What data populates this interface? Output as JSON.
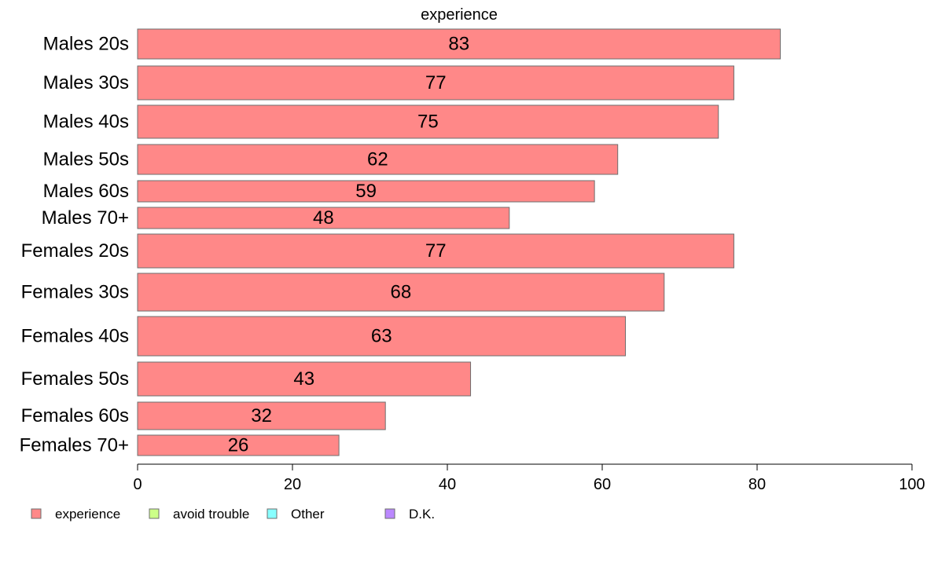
{
  "chart_data": {
    "type": "bar",
    "orientation": "horizontal",
    "title": "experience",
    "xlabel": "",
    "ylabel": "",
    "categories": [
      "Males 20s",
      "Males 30s",
      "Males 40s",
      "Males 50s",
      "Males 60s",
      "Males 70+",
      "Females 20s",
      "Females 30s",
      "Females 40s",
      "Females 50s",
      "Females 60s",
      "Females 70+"
    ],
    "series": [
      {
        "name": "experience",
        "color": "#ff8888",
        "values": [
          83,
          77,
          75,
          62,
          59,
          48,
          77,
          68,
          63,
          43,
          32,
          26
        ]
      }
    ],
    "data_labels": [
      "83",
      "77",
      "75",
      "62",
      "59",
      "48",
      "77",
      "68",
      "63",
      "43",
      "32",
      "26"
    ],
    "xlim": [
      0,
      100
    ],
    "x_ticks": [
      0,
      20,
      40,
      60,
      80,
      100
    ],
    "x_tick_labels": [
      "0",
      "20",
      "40",
      "60",
      "80",
      "100"
    ],
    "grid": false,
    "legend_position": "bottom-left",
    "legend": [
      {
        "label": "experience",
        "color": "#ff8888"
      },
      {
        "label": "avoid trouble",
        "color": "#ccff88"
      },
      {
        "label": "Other",
        "color": "#88ffff"
      },
      {
        "label": "D.K.",
        "color": "#bb88ff"
      }
    ]
  }
}
